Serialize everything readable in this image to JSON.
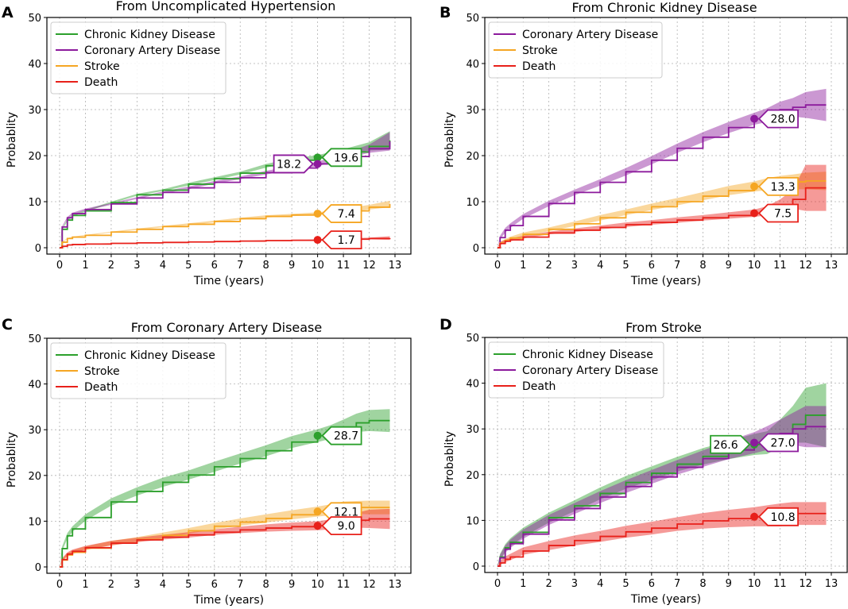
{
  "chart_data": [
    {
      "type": "line",
      "panel_label": "A",
      "title": "From Uncomplicated Hypertension",
      "xlabel": "Time (years)",
      "ylabel": "Probablity",
      "xlim": [
        0,
        13
      ],
      "ylim": [
        0,
        50
      ],
      "xticks": [
        "0",
        "1",
        "2",
        "3",
        "4",
        "5",
        "6",
        "7",
        "8",
        "9",
        "10",
        "11",
        "12",
        "13"
      ],
      "yticks": [
        "0",
        "10",
        "20",
        "30",
        "40",
        "50"
      ],
      "grid": true,
      "legend_position": "top-left",
      "series": [
        {
          "name": "Chronic Kidney Disease",
          "color": "#2ca02c",
          "x": [
            0,
            0.1,
            0.3,
            0.5,
            1,
            2,
            3,
            4,
            5,
            6,
            7,
            8,
            9,
            10,
            11,
            12,
            12.8
          ],
          "y": [
            0,
            4,
            6,
            7,
            8,
            9.8,
            11.5,
            12.5,
            13.8,
            15,
            16.2,
            17.8,
            19,
            19.6,
            20.8,
            22,
            23.3
          ],
          "band": [
            0,
            0.2,
            0.2,
            0.2,
            0.2,
            0.2,
            0.2,
            0.2,
            0.3,
            0.3,
            0.3,
            0.4,
            0.4,
            0.5,
            0.6,
            0.9,
            2
          ],
          "annotation": {
            "text": "19.6",
            "x": 10,
            "y": 19.6,
            "side": "right"
          }
        },
        {
          "name": "Coronary Artery Disease",
          "color": "#8c1a9c",
          "x": [
            0,
            0.1,
            0.3,
            0.5,
            1,
            2,
            3,
            4,
            5,
            6,
            7,
            8,
            9,
            10,
            11,
            12,
            12.8
          ],
          "y": [
            0,
            4.5,
            6.5,
            7.4,
            8.3,
            9.5,
            10.8,
            12,
            13,
            14.2,
            15.2,
            16.3,
            17.3,
            18.2,
            19.8,
            21.5,
            23.1
          ],
          "band": [
            0,
            0.2,
            0.2,
            0.2,
            0.2,
            0.2,
            0.2,
            0.2,
            0.3,
            0.3,
            0.3,
            0.4,
            0.4,
            0.5,
            0.6,
            0.9,
            2
          ],
          "annotation": {
            "text": "18.2",
            "x": 10,
            "y": 18.2,
            "side": "left"
          }
        },
        {
          "name": "Stroke",
          "color": "#f5a623",
          "x": [
            0,
            0.1,
            0.3,
            0.5,
            1,
            2,
            3,
            4,
            5,
            6,
            7,
            8,
            9,
            10,
            11,
            12,
            12.8
          ],
          "y": [
            0,
            1.2,
            2,
            2.3,
            2.7,
            3.4,
            4,
            4.6,
            5.1,
            5.7,
            6.3,
            6.8,
            7.1,
            7.4,
            8,
            8.8,
            9.5
          ],
          "band": [
            0,
            0.1,
            0.1,
            0.1,
            0.1,
            0.1,
            0.15,
            0.15,
            0.2,
            0.2,
            0.2,
            0.25,
            0.25,
            0.3,
            0.4,
            0.5,
            0.7
          ],
          "annotation": {
            "text": "7.4",
            "x": 10,
            "y": 7.4,
            "side": "right"
          }
        },
        {
          "name": "Death",
          "color": "#e8201a",
          "x": [
            0,
            0.1,
            0.3,
            0.5,
            1,
            2,
            3,
            4,
            5,
            6,
            7,
            8,
            9,
            10,
            11,
            12,
            12.8
          ],
          "y": [
            0,
            0.3,
            0.6,
            0.7,
            0.8,
            0.95,
            1.05,
            1.15,
            1.25,
            1.35,
            1.45,
            1.55,
            1.62,
            1.7,
            1.85,
            2,
            2.1
          ],
          "band": [
            0,
            0.05,
            0.05,
            0.05,
            0.05,
            0.05,
            0.05,
            0.05,
            0.05,
            0.05,
            0.05,
            0.1,
            0.1,
            0.1,
            0.15,
            0.2,
            0.4
          ],
          "annotation": {
            "text": "1.7",
            "x": 10,
            "y": 1.7,
            "side": "right"
          }
        }
      ]
    },
    {
      "type": "line",
      "panel_label": "B",
      "title": "From Chronic Kidney Disease",
      "xlabel": "Time (years)",
      "ylabel": "Probablity",
      "xlim": [
        0,
        13
      ],
      "ylim": [
        0,
        50
      ],
      "xticks": [
        "0",
        "1",
        "2",
        "3",
        "4",
        "5",
        "6",
        "7",
        "8",
        "9",
        "10",
        "11",
        "12",
        "13"
      ],
      "yticks": [
        "0",
        "10",
        "20",
        "30",
        "40",
        "50"
      ],
      "grid": true,
      "legend_position": "top-left",
      "series": [
        {
          "name": "Coronary Artery Disease",
          "color": "#8c1a9c",
          "x": [
            0,
            0.1,
            0.3,
            0.5,
            1,
            2,
            3,
            4,
            5,
            6,
            7,
            8,
            9,
            10,
            10.5,
            11,
            11.5,
            12,
            12.8
          ],
          "y": [
            0,
            2.2,
            3.8,
            4.8,
            6.8,
            9.6,
            12,
            14.2,
            16.5,
            19,
            21.6,
            24,
            26.1,
            28,
            28.8,
            30,
            30.5,
            31,
            31
          ],
          "band": [
            0,
            0.4,
            0.5,
            0.5,
            0.5,
            0.6,
            0.6,
            0.7,
            0.8,
            0.9,
            1,
            1.1,
            1.2,
            1.3,
            1.5,
            1.7,
            2,
            2.8,
            3.5
          ],
          "annotation": {
            "text": "28.0",
            "x": 10,
            "y": 28,
            "side": "right"
          }
        },
        {
          "name": "Stroke",
          "color": "#f5a623",
          "x": [
            0,
            0.1,
            0.3,
            0.5,
            1,
            2,
            3,
            4,
            5,
            6,
            7,
            8,
            9,
            10,
            10.5,
            11,
            11.5,
            12,
            12.8
          ],
          "y": [
            0,
            1,
            1.6,
            2.1,
            2.9,
            4,
            5.2,
            6.5,
            7.7,
            8.9,
            10,
            11.2,
            12.4,
            13.3,
            13.8,
            14.1,
            14.3,
            14.5,
            14.5
          ],
          "band": [
            0,
            0.3,
            0.3,
            0.3,
            0.4,
            0.4,
            0.5,
            0.6,
            0.6,
            0.7,
            0.8,
            0.9,
            1,
            1.1,
            1.3,
            1.5,
            1.6,
            1.8,
            2
          ],
          "annotation": {
            "text": "13.3",
            "x": 10,
            "y": 13.3,
            "side": "right"
          }
        },
        {
          "name": "Death",
          "color": "#e8201a",
          "x": [
            0,
            0.1,
            0.3,
            0.5,
            1,
            2,
            3,
            4,
            5,
            6,
            7,
            8,
            9,
            10,
            10.5,
            11,
            11.5,
            12,
            12.8
          ],
          "y": [
            0,
            0.9,
            1.4,
            1.7,
            2.3,
            3.2,
            3.8,
            4.4,
            5,
            5.5,
            6,
            6.5,
            7,
            7.5,
            8,
            9,
            10.5,
            13,
            13
          ],
          "band": [
            0,
            0.3,
            0.3,
            0.3,
            0.3,
            0.3,
            0.4,
            0.4,
            0.5,
            0.5,
            0.6,
            0.6,
            0.7,
            0.8,
            1,
            1.5,
            2,
            5,
            5
          ],
          "annotation": {
            "text": "7.5",
            "x": 10,
            "y": 7.5,
            "side": "right"
          }
        }
      ]
    },
    {
      "type": "line",
      "panel_label": "C",
      "title": "From Coronary Artery Disease",
      "xlabel": "Time (years)",
      "ylabel": "Probablity",
      "xlim": [
        0,
        13
      ],
      "ylim": [
        0,
        50
      ],
      "xticks": [
        "0",
        "1",
        "2",
        "3",
        "4",
        "5",
        "6",
        "7",
        "8",
        "9",
        "10",
        "11",
        "12",
        "13"
      ],
      "yticks": [
        "0",
        "10",
        "20",
        "30",
        "40",
        "50"
      ],
      "grid": true,
      "legend_position": "top-left",
      "series": [
        {
          "name": "Chronic Kidney Disease",
          "color": "#2ca02c",
          "x": [
            0,
            0.1,
            0.3,
            0.5,
            1,
            2,
            3,
            4,
            5,
            6,
            7,
            8,
            9,
            10,
            10.5,
            11,
            11.5,
            12,
            12.8
          ],
          "y": [
            0,
            4,
            6.8,
            8.3,
            10.8,
            14.2,
            16.5,
            18.5,
            20.1,
            21.9,
            23.7,
            25.4,
            27.3,
            28.7,
            29.5,
            30.5,
            31.5,
            32,
            32
          ],
          "band": [
            0,
            0.5,
            0.6,
            0.6,
            0.7,
            0.8,
            0.9,
            1,
            1,
            1.1,
            1.1,
            1.2,
            1.3,
            1.4,
            1.5,
            1.7,
            2,
            2.3,
            2.5
          ],
          "annotation": {
            "text": "28.7",
            "x": 10,
            "y": 28.7,
            "side": "right"
          }
        },
        {
          "name": "Stroke",
          "color": "#f5a623",
          "x": [
            0,
            0.1,
            0.3,
            0.5,
            1,
            2,
            3,
            4,
            5,
            6,
            7,
            8,
            9,
            10,
            10.5,
            11,
            11.5,
            12,
            12.8
          ],
          "y": [
            0,
            1.5,
            2.6,
            3.2,
            4.1,
            5.2,
            6,
            6.9,
            7.9,
            8.9,
            9.8,
            10.6,
            11.4,
            12.1,
            12.5,
            13,
            13,
            13,
            13
          ],
          "band": [
            0,
            0.3,
            0.4,
            0.4,
            0.4,
            0.5,
            0.5,
            0.6,
            0.6,
            0.7,
            0.8,
            0.9,
            1,
            1.1,
            1.2,
            1.3,
            1.4,
            1.5,
            1.5
          ],
          "annotation": {
            "text": "12.1",
            "x": 10,
            "y": 12.1,
            "side": "right"
          }
        },
        {
          "name": "Death",
          "color": "#e8201a",
          "x": [
            0,
            0.1,
            0.3,
            0.5,
            1,
            2,
            3,
            4,
            5,
            6,
            7,
            8,
            9,
            10,
            10.5,
            11,
            11.5,
            12,
            12.8
          ],
          "y": [
            0,
            1.6,
            2.8,
            3.4,
            4.2,
            5.2,
            5.9,
            6.5,
            7,
            7.6,
            8.1,
            8.5,
            8.8,
            9,
            9.3,
            9.7,
            10.2,
            10.5,
            10.5
          ],
          "band": [
            0,
            0.3,
            0.4,
            0.4,
            0.4,
            0.5,
            0.5,
            0.5,
            0.6,
            0.6,
            0.7,
            0.8,
            0.9,
            1,
            1.1,
            1.3,
            1.6,
            2,
            2.2
          ],
          "annotation": {
            "text": "9.0",
            "x": 10,
            "y": 9,
            "side": "right"
          }
        }
      ]
    },
    {
      "type": "line",
      "panel_label": "D",
      "title": "From Stroke",
      "xlabel": "Time (years)",
      "ylabel": "Probablity",
      "xlim": [
        0,
        13
      ],
      "ylim": [
        0,
        50
      ],
      "xticks": [
        "0",
        "1",
        "2",
        "3",
        "4",
        "5",
        "6",
        "7",
        "8",
        "9",
        "10",
        "11",
        "12",
        "13"
      ],
      "yticks": [
        "0",
        "10",
        "20",
        "30",
        "40",
        "50"
      ],
      "grid": true,
      "legend_position": "top-left",
      "series": [
        {
          "name": "Chronic Kidney Disease",
          "color": "#2ca02c",
          "x": [
            0,
            0.1,
            0.3,
            0.5,
            1,
            2,
            3,
            4,
            5,
            6,
            7,
            8,
            9,
            10,
            10.5,
            11,
            11.5,
            12,
            12.8
          ],
          "y": [
            0,
            2,
            4,
            5.2,
            7.4,
            10.6,
            13.2,
            15.9,
            18.3,
            20.3,
            22.3,
            24,
            25.4,
            26.6,
            27,
            29,
            31,
            33,
            33
          ],
          "band": [
            0,
            0.7,
            0.8,
            0.9,
            1,
            1.1,
            1.2,
            1.3,
            1.4,
            1.5,
            1.6,
            1.8,
            2,
            2.3,
            2.5,
            3,
            4,
            6,
            7
          ],
          "annotation": {
            "text": "26.6",
            "x": 10,
            "y": 26.6,
            "side": "left"
          }
        },
        {
          "name": "Coronary Artery Disease",
          "color": "#8c1a9c",
          "x": [
            0,
            0.1,
            0.3,
            0.5,
            1,
            2,
            3,
            4,
            5,
            6,
            7,
            8,
            9,
            10,
            10.5,
            11,
            11.5,
            12,
            12.8
          ],
          "y": [
            0,
            1.8,
            3.7,
            4.9,
            7,
            10.1,
            12.6,
            15.1,
            17.4,
            19.5,
            21.6,
            23.5,
            25.4,
            27,
            28,
            29,
            30,
            30.5,
            30.5
          ],
          "band": [
            0,
            0.7,
            0.8,
            0.9,
            1,
            1.1,
            1.2,
            1.3,
            1.4,
            1.5,
            1.6,
            1.8,
            2,
            2.3,
            2.6,
            3,
            3.5,
            4.5,
            4.5
          ],
          "annotation": {
            "text": "27.0",
            "x": 10,
            "y": 27,
            "side": "right"
          }
        },
        {
          "name": "Death",
          "color": "#e8201a",
          "x": [
            0,
            0.1,
            0.3,
            0.5,
            1,
            2,
            3,
            4,
            5,
            6,
            7,
            8,
            9,
            10,
            10.5,
            11,
            11.5,
            12,
            12.8
          ],
          "y": [
            0,
            0.7,
            1.5,
            2,
            3.3,
            4.5,
            5.6,
            6.5,
            7.5,
            8.3,
            9.2,
            9.9,
            10.4,
            10.8,
            11,
            11.2,
            11.5,
            11.5,
            11.5
          ],
          "band": [
            0,
            0.5,
            0.6,
            0.7,
            0.8,
            1,
            1.1,
            1.2,
            1.3,
            1.4,
            1.5,
            1.7,
            1.9,
            2.1,
            2.3,
            2.5,
            2.5,
            2.5,
            2.5
          ],
          "annotation": {
            "text": "10.8",
            "x": 10,
            "y": 10.8,
            "side": "right"
          }
        }
      ]
    }
  ]
}
